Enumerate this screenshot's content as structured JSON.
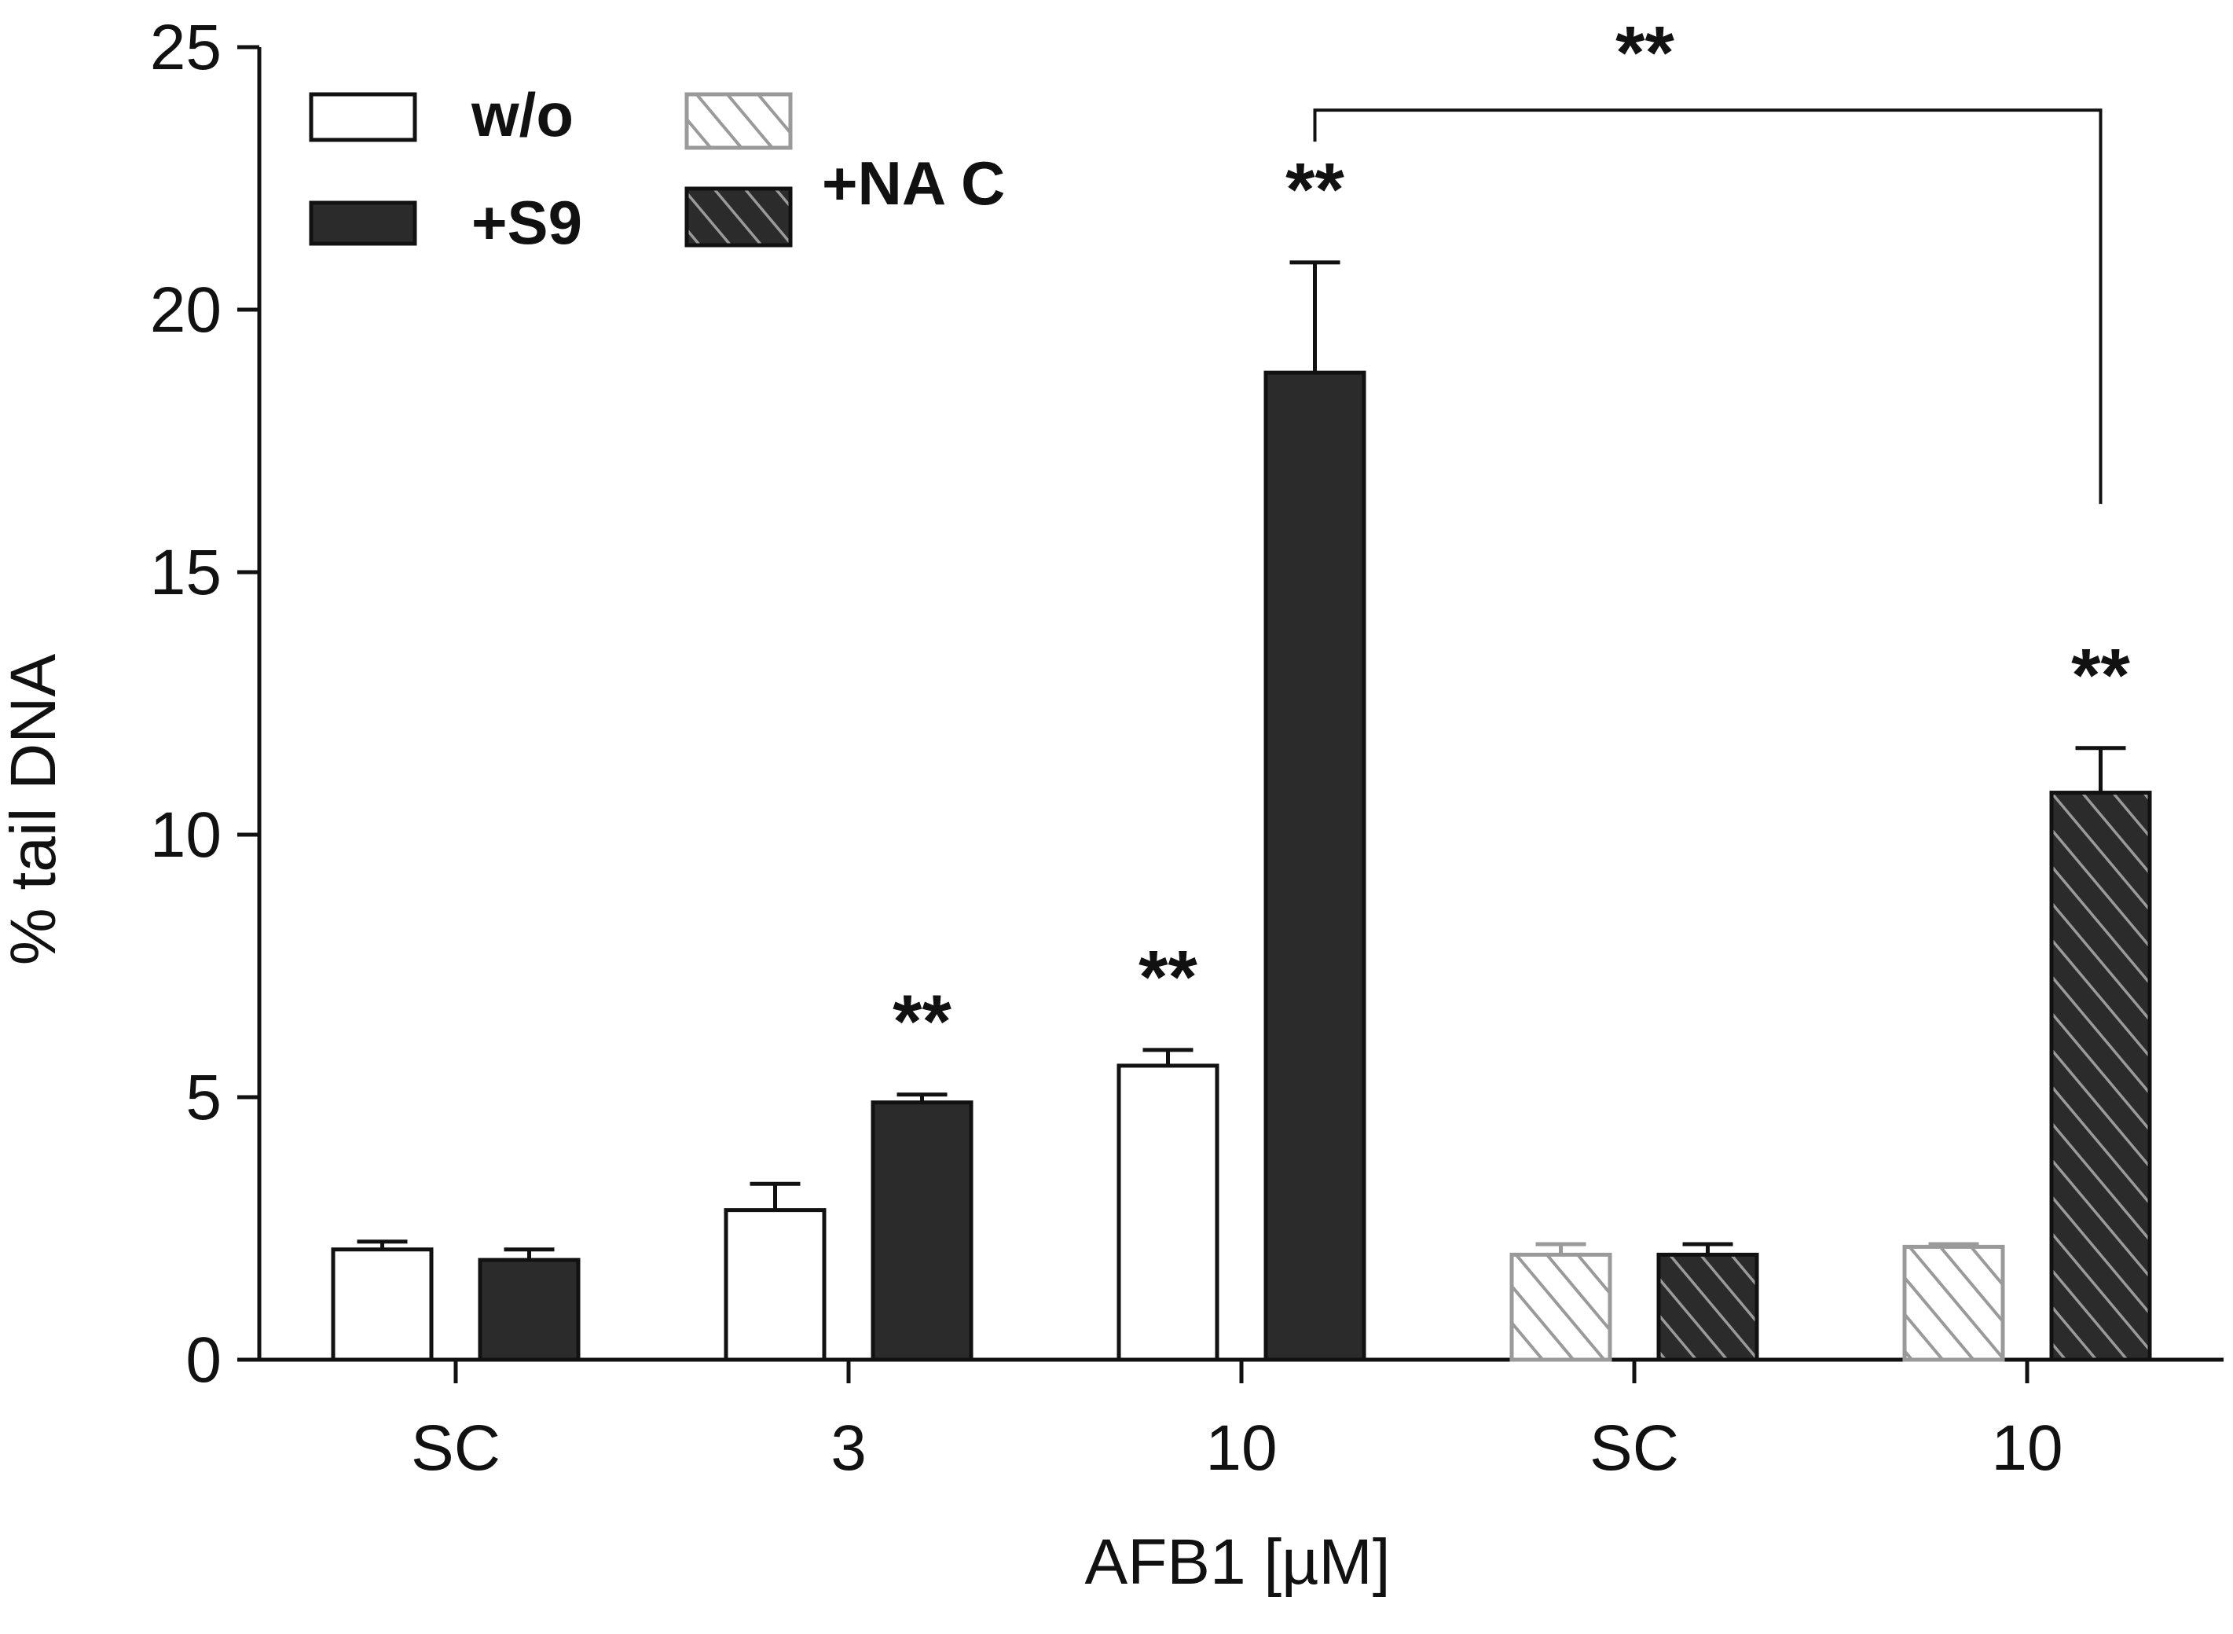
{
  "chart_data": {
    "type": "bar",
    "title": "",
    "xlabel": "AFB1 [µM]",
    "ylabel": "% tail DNA",
    "ylim": [
      0,
      25
    ],
    "yticks": [
      0,
      5,
      10,
      15,
      20,
      25
    ],
    "grid": false,
    "legend_position": "top-left",
    "categories": [
      "SC",
      "3",
      "10",
      "SC",
      "10"
    ],
    "series": [
      {
        "name": "w/o",
        "fill": "#ffffff",
        "hatch": false,
        "values": [
          2.1,
          2.85,
          5.6,
          null,
          null
        ],
        "errors": [
          0.15,
          0.5,
          0.3,
          null,
          null
        ]
      },
      {
        "name": "+S9",
        "fill": "#2b2b2b",
        "hatch": false,
        "values": [
          1.9,
          4.9,
          18.8,
          null,
          null
        ],
        "errors": [
          0.2,
          0.15,
          2.1,
          null,
          null
        ]
      },
      {
        "name": "w/o +NAC",
        "fill": "#ffffff",
        "hatch": true,
        "values": [
          null,
          null,
          null,
          2.0,
          2.15
        ],
        "errors": [
          null,
          null,
          null,
          0.2,
          0.05
        ]
      },
      {
        "name": "+S9 +NAC",
        "fill": "#2b2b2b",
        "hatch": true,
        "values": [
          null,
          null,
          null,
          2.0,
          10.8
        ],
        "errors": [
          null,
          null,
          null,
          0.2,
          0.85
        ]
      }
    ],
    "annotations": [
      {
        "text": "**",
        "category_index": 1,
        "series": "+S9"
      },
      {
        "text": "**",
        "category_index": 2,
        "series": "w/o"
      },
      {
        "text": "**",
        "category_index": 2,
        "series": "+S9"
      },
      {
        "text": "**",
        "category_index": 4,
        "series": "+S9 +NAC"
      }
    ],
    "bracket": {
      "text": "**",
      "from": {
        "category_index": 2,
        "series": "+S9"
      },
      "to": {
        "category_index": 4,
        "series": "+S9 +NAC"
      },
      "level": 23.8
    },
    "legend": {
      "entries": [
        {
          "label": "w/o",
          "fill": "#ffffff",
          "hatch": false
        },
        {
          "label": "+S9",
          "fill": "#2b2b2b",
          "hatch": false
        }
      ],
      "group_label": "+NA C"
    }
  }
}
